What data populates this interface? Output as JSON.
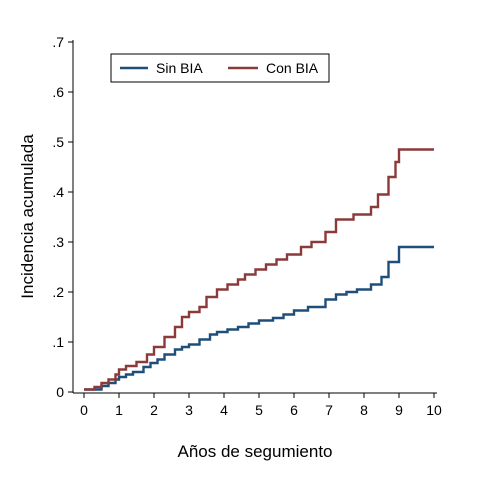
{
  "chart_data": {
    "type": "line",
    "step": true,
    "xlabel": "Años de segumiento",
    "ylabel": "Incidencia acumulada",
    "xlim": [
      0,
      10
    ],
    "ylim": [
      0,
      0.7
    ],
    "x_ticks": [
      0,
      1,
      2,
      3,
      4,
      5,
      6,
      7,
      8,
      9,
      10
    ],
    "x_tick_labels": [
      "0",
      "1",
      "2",
      "3",
      "4",
      "5",
      "6",
      "7",
      "8",
      "9",
      "10"
    ],
    "y_ticks": [
      0,
      0.1,
      0.2,
      0.3,
      0.4,
      0.5,
      0.6,
      0.7
    ],
    "y_tick_labels": [
      "0",
      ".1",
      ".2",
      ".3",
      ".4",
      ".5",
      ".6",
      ".7"
    ],
    "grid": false,
    "legend_position": "top-left",
    "series": [
      {
        "name": "Sin BIA",
        "color": "#1f4e79",
        "x": [
          0,
          0.3,
          0.5,
          0.7,
          0.9,
          1.0,
          1.2,
          1.4,
          1.7,
          1.9,
          2.1,
          2.3,
          2.6,
          2.8,
          3.0,
          3.3,
          3.6,
          3.8,
          4.1,
          4.4,
          4.7,
          5.0,
          5.4,
          5.7,
          6.0,
          6.4,
          6.9,
          7.2,
          7.5,
          7.8,
          8.2,
          8.5,
          8.7,
          9.0,
          10.0
        ],
        "y": [
          0.005,
          0.005,
          0.012,
          0.018,
          0.025,
          0.03,
          0.035,
          0.04,
          0.05,
          0.058,
          0.065,
          0.075,
          0.085,
          0.09,
          0.095,
          0.105,
          0.115,
          0.12,
          0.125,
          0.13,
          0.137,
          0.143,
          0.148,
          0.155,
          0.163,
          0.17,
          0.185,
          0.195,
          0.2,
          0.205,
          0.215,
          0.23,
          0.26,
          0.29,
          0.29
        ]
      },
      {
        "name": "Con BIA",
        "color": "#8b3a3a",
        "x": [
          0,
          0.3,
          0.5,
          0.7,
          0.9,
          1.0,
          1.2,
          1.5,
          1.8,
          2.0,
          2.3,
          2.6,
          2.8,
          3.0,
          3.3,
          3.5,
          3.8,
          4.1,
          4.4,
          4.6,
          4.9,
          5.2,
          5.5,
          5.8,
          6.2,
          6.5,
          6.9,
          7.2,
          7.7,
          8.2,
          8.4,
          8.7,
          8.9,
          9.0,
          10.0
        ],
        "y": [
          0.005,
          0.01,
          0.018,
          0.025,
          0.035,
          0.045,
          0.052,
          0.06,
          0.075,
          0.09,
          0.11,
          0.13,
          0.15,
          0.16,
          0.17,
          0.19,
          0.205,
          0.215,
          0.225,
          0.235,
          0.245,
          0.255,
          0.265,
          0.275,
          0.29,
          0.3,
          0.32,
          0.345,
          0.355,
          0.37,
          0.395,
          0.43,
          0.46,
          0.485,
          0.485
        ]
      }
    ]
  }
}
